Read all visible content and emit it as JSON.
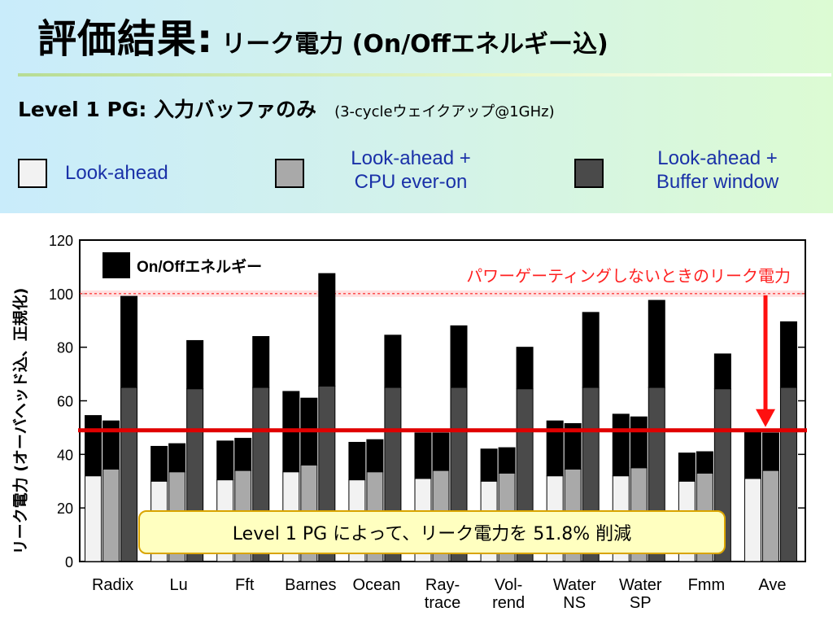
{
  "slide": {
    "title_main": "評価結果:",
    "title_sub": "リーク電力 (On/Offエネルギー込)",
    "subtitle_main": "Level 1 PG: 入力バッファのみ",
    "subtitle_note": "(3-cycleウェイクアップ@1GHz)"
  },
  "legend": [
    {
      "label_line1": "Look-ahead",
      "label_line2": "",
      "color": "#f2f2f2"
    },
    {
      "label_line1": "Look-ahead +",
      "label_line2": "CPU ever-on",
      "color": "#a9a9a9"
    },
    {
      "label_line1": "Look-ahead +",
      "label_line2": "Buffer window",
      "color": "#4a4a4a"
    }
  ],
  "callout": "Level 1 PG によって、リーク電力を 51.8% 削減",
  "chart_data": {
    "type": "bar",
    "stacked": true,
    "ylabel": "リーク電力 (オーバヘッド込、正規化)",
    "ylim": [
      0,
      120
    ],
    "yticks": [
      0,
      20,
      40,
      60,
      80,
      100,
      120
    ],
    "grid": false,
    "categories": [
      [
        "Radix"
      ],
      [
        "Lu"
      ],
      [
        "Fft"
      ],
      [
        "Barnes"
      ],
      [
        "Ocean"
      ],
      [
        "Ray-",
        "trace"
      ],
      [
        "Vol-",
        "rend"
      ],
      [
        "Water",
        "NS"
      ],
      [
        "Water",
        "SP"
      ],
      [
        "Fmm"
      ],
      [
        "Ave"
      ]
    ],
    "series": [
      {
        "name": "Look-ahead",
        "color": "#f2f2f2",
        "leakage": [
          32,
          30,
          30.5,
          33.5,
          30.5,
          31,
          30,
          32,
          32,
          30,
          31
        ],
        "onoff": [
          22.5,
          13,
          14.5,
          30,
          14,
          17,
          12,
          20.5,
          23,
          10.5,
          18
        ]
      },
      {
        "name": "Look-ahead + CPU ever-on",
        "color": "#a9a9a9",
        "leakage": [
          34.5,
          33.5,
          34,
          36,
          33.5,
          34,
          33,
          34.5,
          35,
          33,
          34
        ],
        "onoff": [
          18,
          10.5,
          12,
          25,
          12,
          14,
          9.5,
          17,
          19,
          8,
          14
        ]
      },
      {
        "name": "Look-ahead + Buffer window",
        "color": "#4a4a4a",
        "leakage": [
          65,
          64.5,
          65,
          65.5,
          65,
          65,
          64.5,
          65,
          65,
          64.5,
          65
        ],
        "onoff": [
          34,
          18,
          19,
          42,
          19.5,
          23,
          15.5,
          28,
          32.5,
          13,
          24.5
        ]
      }
    ],
    "onoff_legend": {
      "label": "On/Offエネルギー",
      "color": "#000000"
    },
    "reference_line": {
      "value": 100,
      "label": "パワーゲーティングしないときのリーク電力",
      "color": "#ff2020"
    },
    "result_line": {
      "value": 49,
      "color": "#e00000"
    }
  }
}
